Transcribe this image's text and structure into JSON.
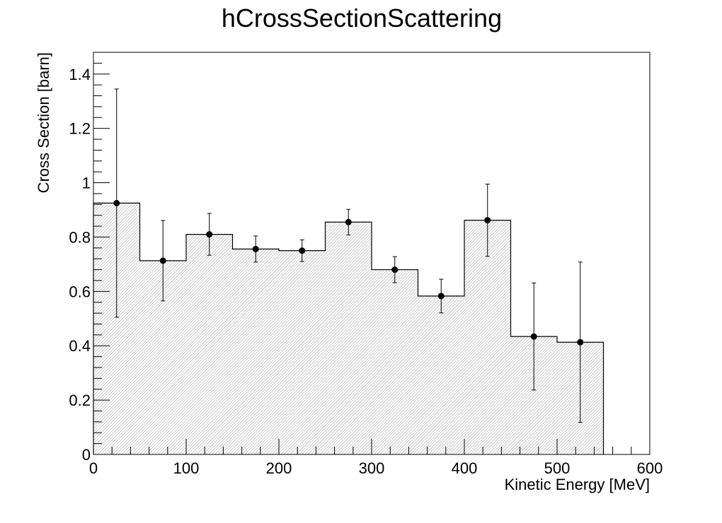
{
  "chart_data": {
    "type": "bar",
    "style": "histogram-with-error-bars",
    "title": "hCrossSectionScattering",
    "xlabel": "Kinetic Energy [MeV]",
    "ylabel": "Cross Section [barn]",
    "xlim": [
      0,
      600
    ],
    "ylim": [
      0,
      1.48
    ],
    "x_ticks": [
      "0",
      "100",
      "200",
      "300",
      "400",
      "500",
      "600"
    ],
    "y_ticks": [
      "0",
      "0.2",
      "0.4",
      "0.6",
      "0.8",
      "1",
      "1.2",
      "1.4"
    ],
    "bin_edges": [
      0,
      50,
      100,
      150,
      200,
      250,
      300,
      350,
      400,
      450,
      500,
      550
    ],
    "bin_centers": [
      25,
      75,
      125,
      175,
      225,
      275,
      325,
      375,
      425,
      475,
      525
    ],
    "values": [
      0.925,
      0.713,
      0.81,
      0.756,
      0.75,
      0.855,
      0.68,
      0.583,
      0.862,
      0.434,
      0.413
    ],
    "errors": [
      0.42,
      0.148,
      0.077,
      0.048,
      0.04,
      0.047,
      0.048,
      0.062,
      0.133,
      0.197,
      0.295
    ],
    "fill_pattern": "hatched",
    "colors": {
      "line": "#000000",
      "fill": "#e6e6e6",
      "marker": "#000000"
    },
    "grid": false,
    "legend": "none"
  }
}
